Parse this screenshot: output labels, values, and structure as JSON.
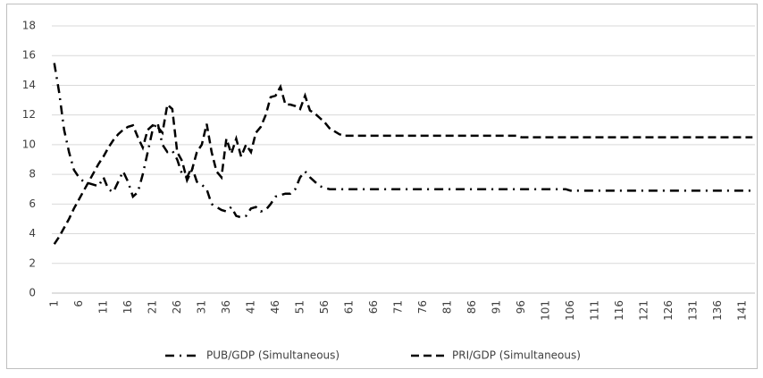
{
  "chart_data": {
    "type": "line",
    "categories": [
      1,
      null,
      null,
      null,
      null,
      6,
      null,
      null,
      null,
      null,
      11,
      null,
      null,
      null,
      null,
      16,
      null,
      null,
      null,
      null,
      21,
      null,
      null,
      null,
      null,
      26,
      null,
      null,
      null,
      null,
      31,
      null,
      null,
      null,
      null,
      36,
      null,
      null,
      null,
      null,
      41,
      null,
      null,
      null,
      null,
      46,
      null,
      null,
      null,
      null,
      51,
      null,
      null,
      null,
      null,
      56,
      null,
      null,
      null,
      null,
      61,
      null,
      null,
      null,
      null,
      66,
      null,
      null,
      null,
      null,
      71,
      null,
      null,
      null,
      null,
      76,
      null,
      null,
      null,
      null,
      81,
      null,
      null,
      null,
      null,
      86,
      null,
      null,
      null,
      null,
      91,
      null,
      null,
      null,
      null,
      96,
      null,
      null,
      null,
      null,
      101,
      null,
      null,
      null,
      null,
      106,
      null,
      null,
      null,
      null,
      111,
      null,
      null,
      null,
      null,
      116,
      null,
      null,
      null,
      null,
      121,
      null,
      null,
      null,
      null,
      126,
      null,
      null,
      null,
      null,
      131,
      null,
      null,
      null,
      null,
      136,
      null,
      null,
      null,
      null,
      141,
      null,
      null
    ],
    "series": [
      {
        "name": "PUB/GDP (Simultaneous)",
        "color": "#000000",
        "dash": "dashdot",
        "values": [
          15.5,
          13.5,
          11,
          9.5,
          8.3,
          7.8,
          7.5,
          7.4,
          7.3,
          7.2,
          7.8,
          7,
          6.8,
          7.5,
          8.2,
          7.5,
          6.5,
          6.8,
          8,
          9.5,
          11,
          11.5,
          10,
          9.5,
          9.6,
          9,
          8,
          7.8,
          8.5,
          7.5,
          7.3,
          7,
          6,
          5.8,
          5.6,
          5.5,
          5.8,
          5.2,
          5.1,
          5.2,
          5.7,
          5.8,
          5.5,
          5.6,
          6,
          6.5,
          6.6,
          6.7,
          6.7,
          7,
          7.8,
          8.2,
          7.8,
          7.5,
          7.2,
          7.1,
          7,
          7,
          7,
          7,
          7,
          7,
          7,
          7,
          7,
          7,
          7,
          7,
          7,
          7,
          7,
          7,
          7,
          7,
          7,
          7,
          7,
          7,
          7,
          7,
          7,
          7,
          7,
          7,
          7,
          7,
          7,
          7,
          7,
          7,
          7,
          7,
          7,
          7,
          7,
          7,
          7,
          7,
          7,
          7,
          7,
          7,
          7,
          7,
          7,
          6.9,
          6.9,
          6.9,
          6.9,
          6.9,
          6.9,
          6.9,
          6.9,
          6.9,
          6.9,
          6.9,
          6.9,
          6.9,
          6.9,
          6.9,
          6.9,
          6.9,
          6.9,
          6.9,
          6.9,
          6.9,
          6.9,
          6.9,
          6.9,
          6.9,
          6.9,
          6.9,
          6.9,
          6.9,
          6.9,
          6.9,
          6.9,
          6.9,
          6.9,
          6.9,
          6.9,
          6.9,
          6.9
        ]
      },
      {
        "name": "PRI/GDP (Simultaneous)",
        "color": "#000000",
        "dash": "dash",
        "values": [
          3.3,
          3.8,
          4.4,
          5,
          5.7,
          6.3,
          6.9,
          7.5,
          8.1,
          8.7,
          9.2,
          9.8,
          10.3,
          10.7,
          11,
          11.2,
          11.3,
          10.5,
          9.8,
          11,
          11.3,
          11.2,
          10.8,
          12.7,
          12.4,
          9.5,
          8.9,
          7.6,
          8.3,
          9.5,
          10,
          11.4,
          9.5,
          8.2,
          7.8,
          10.4,
          9.4,
          10.4,
          9.2,
          10,
          9.5,
          10.8,
          11.2,
          12,
          13.2,
          13.3,
          13.9,
          12.7,
          12.7,
          12.6,
          12.4,
          13.3,
          12.3,
          12.1,
          11.8,
          11.5,
          11.1,
          10.9,
          10.7,
          10.6,
          10.6,
          10.6,
          10.6,
          10.6,
          10.6,
          10.6,
          10.6,
          10.6,
          10.6,
          10.6,
          10.6,
          10.6,
          10.6,
          10.6,
          10.6,
          10.6,
          10.6,
          10.6,
          10.6,
          10.6,
          10.6,
          10.6,
          10.6,
          10.6,
          10.6,
          10.6,
          10.6,
          10.6,
          10.6,
          10.6,
          10.6,
          10.6,
          10.6,
          10.6,
          10.6,
          10.5,
          10.5,
          10.5,
          10.5,
          10.5,
          10.5,
          10.5,
          10.5,
          10.5,
          10.5,
          10.5,
          10.5,
          10.5,
          10.5,
          10.5,
          10.5,
          10.5,
          10.5,
          10.5,
          10.5,
          10.5,
          10.5,
          10.5,
          10.5,
          10.5,
          10.5,
          10.5,
          10.5,
          10.5,
          10.5,
          10.5,
          10.5,
          10.5,
          10.5,
          10.5,
          10.5,
          10.5,
          10.5,
          10.5,
          10.5,
          10.5,
          10.5,
          10.5,
          10.5,
          10.5,
          10.5,
          10.5,
          10.5
        ]
      }
    ],
    "ylim": [
      0,
      18
    ],
    "yticks": [
      0,
      2,
      4,
      6,
      8,
      10,
      12,
      14,
      16,
      18
    ],
    "grid": true,
    "legend": "bottom"
  }
}
